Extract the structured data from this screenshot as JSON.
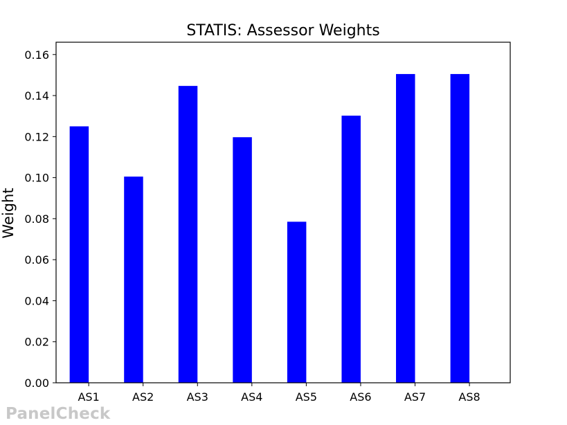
{
  "chart_data": {
    "type": "bar",
    "title": "STATIS: Assessor Weights",
    "xlabel": "",
    "ylabel": "Weight",
    "categories": [
      "AS1",
      "AS2",
      "AS3",
      "AS4",
      "AS5",
      "AS6",
      "AS7",
      "AS8"
    ],
    "values": [
      0.125,
      0.1005,
      0.1447,
      0.1197,
      0.0785,
      0.1302,
      0.1505,
      0.1505
    ],
    "ylim": [
      0,
      0.166
    ],
    "yticks": [
      "0.00",
      "0.02",
      "0.04",
      "0.06",
      "0.08",
      "0.10",
      "0.12",
      "0.14",
      "0.16"
    ],
    "bar_color": "#0000ff",
    "grid": false,
    "legend": "none"
  },
  "watermark": "PanelCheck"
}
